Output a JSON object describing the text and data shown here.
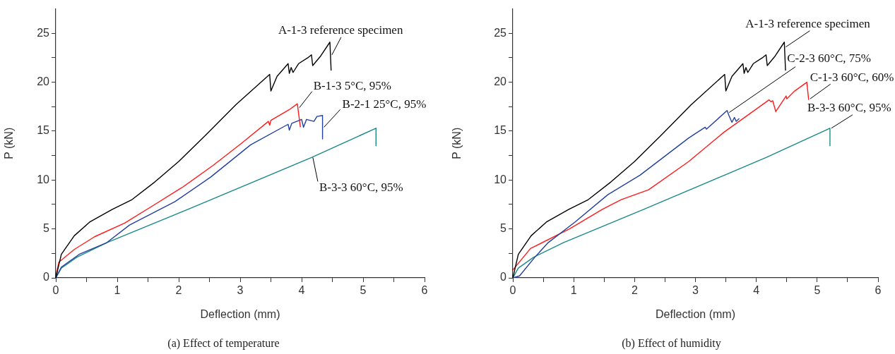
{
  "chart_data": [
    {
      "type": "line",
      "title": "(a)  Effect of temperature",
      "xlabel": "Deflection (mm)",
      "ylabel": "P (kN)",
      "xlim": [
        0,
        6
      ],
      "ylim": [
        0,
        27.5
      ],
      "xticks": [
        0,
        {
          "value": 0.5,
          "label": null
        },
        1,
        {
          "value": 1.5,
          "label": null
        },
        2,
        {
          "value": 2.5,
          "label": null
        },
        3,
        {
          "value": 3.5,
          "label": null
        },
        4,
        {
          "value": 4.5,
          "label": null
        },
        5,
        {
          "value": 5.5,
          "label": null
        },
        6
      ],
      "yticks": [
        0,
        {
          "value": 2.5,
          "label": null
        },
        5,
        {
          "value": 7.5,
          "label": null
        },
        10,
        {
          "value": 12.5,
          "label": null
        },
        15,
        {
          "value": 17.5,
          "label": null
        },
        20,
        {
          "value": 22.5,
          "label": null
        },
        25
      ],
      "grid": false,
      "legend": false,
      "annotations": [
        {
          "text": "A-1-3 reference specimen",
          "x": 4.47,
          "y": 22.8
        },
        {
          "text": "B-1-3 5°C, 95%",
          "x": 3.94,
          "y": 17.4
        },
        {
          "text": "B-2-1 25°C, 95%",
          "x": 4.34,
          "y": 15.4
        },
        {
          "text": "B-3-3 60°C, 95%",
          "x": 4.16,
          "y": 12.3
        }
      ],
      "series": [
        {
          "color": "#000000",
          "x": [
            0,
            0.09,
            0.3,
            0.55,
            0.92,
            1.24,
            1.61,
            2,
            2.44,
            2.93,
            3.48,
            3.5,
            3.6,
            3.78,
            3.8,
            3.83,
            3.86,
            3.95,
            4.1,
            4.16,
            4.18,
            4.3,
            4.46,
            4.48
          ],
          "values": [
            0,
            2.4,
            4.3,
            5.7,
            7.0,
            8.0,
            9.8,
            11.9,
            14.6,
            17.7,
            20.8,
            19.1,
            20.6,
            21.9,
            20.9,
            21.5,
            21.0,
            21.9,
            22.5,
            22.8,
            21.7,
            22.6,
            24.1,
            21.2
          ]
        },
        {
          "color": "#ff1a1a",
          "x": [
            0,
            0.05,
            0.3,
            0.63,
            1.12,
            1.61,
            2.07,
            2.56,
            3.01,
            3.46,
            3.48,
            3.5,
            3.8,
            3.93,
            3.98
          ],
          "values": [
            0.2,
            1.6,
            2.9,
            4.2,
            5.6,
            7.5,
            9.3,
            11.5,
            13.7,
            16.0,
            15.6,
            16.1,
            17.2,
            17.8,
            15.4
          ]
        },
        {
          "color": "#2140a0",
          "x": [
            0,
            0.09,
            0.38,
            0.83,
            1.2,
            1.94,
            2.52,
            3.17,
            3.78,
            3.8,
            3.84,
            4.0,
            4.03,
            4.08,
            4.2,
            4.25,
            4.34,
            4.34
          ],
          "values": [
            0,
            1.1,
            2.4,
            3.6,
            5.4,
            7.8,
            10.3,
            13.6,
            15.7,
            15.1,
            15.8,
            16.2,
            15.4,
            16.2,
            16.0,
            16.5,
            16.6,
            14.2
          ]
        },
        {
          "color": "#1a8a86",
          "x": [
            0,
            0.09,
            0.34,
            0.83,
            2.15,
            4.16,
            5.21,
            5.21
          ],
          "values": [
            0,
            1.0,
            2.1,
            3.6,
            7.0,
            12.3,
            15.3,
            13.5
          ]
        }
      ]
    },
    {
      "type": "line",
      "title": "(b)  Effect of humidity",
      "xlabel": "Deflection (mm)",
      "ylabel": "P (kN)",
      "xlim": [
        0,
        6
      ],
      "ylim": [
        0,
        27.5
      ],
      "xticks": [
        0,
        {
          "value": 0.5,
          "label": null
        },
        1,
        {
          "value": 1.5,
          "label": null
        },
        2,
        {
          "value": 2.5,
          "label": null
        },
        3,
        {
          "value": 3.5,
          "label": null
        },
        4,
        {
          "value": 4.5,
          "label": null
        },
        5,
        {
          "value": 5.5,
          "label": null
        },
        6
      ],
      "yticks": [
        0,
        {
          "value": 2.5,
          "label": null
        },
        5,
        {
          "value": 7.5,
          "label": null
        },
        10,
        {
          "value": 12.5,
          "label": null
        },
        15,
        {
          "value": 17.5,
          "label": null
        },
        20,
        {
          "value": 22.5,
          "label": null
        },
        25
      ],
      "grid": false,
      "legend": false,
      "annotations": [
        {
          "text": "A-1-3 reference specimen",
          "x": 4.46,
          "y": 23.6
        },
        {
          "text": "C-2-3 60°C, 75%",
          "x": 3.53,
          "y": 16.9
        },
        {
          "text": "C-1-3 60°C, 60%",
          "x": 4.86,
          "y": 18.3
        },
        {
          "text": "B-3-3 60°C, 95%",
          "x": 5.21,
          "y": 15.3
        }
      ],
      "series": [
        {
          "color": "#000000",
          "x": [
            0,
            0.09,
            0.3,
            0.55,
            0.92,
            1.24,
            1.61,
            2,
            2.44,
            2.93,
            3.48,
            3.5,
            3.6,
            3.78,
            3.8,
            3.83,
            3.86,
            3.95,
            4.1,
            4.16,
            4.18,
            4.3,
            4.46,
            4.48
          ],
          "values": [
            0,
            2.4,
            4.3,
            5.7,
            7.0,
            8.0,
            9.8,
            11.9,
            14.6,
            17.7,
            20.8,
            19.1,
            20.6,
            21.9,
            20.9,
            21.5,
            21.0,
            21.9,
            22.5,
            22.8,
            21.7,
            22.6,
            24.1,
            21.2
          ]
        },
        {
          "color": "#2140a0",
          "x": [
            0,
            0.11,
            0.36,
            0.58,
            1.02,
            1.56,
            2.09,
            2.89,
            3.16,
            3.18,
            3.52,
            3.55,
            3.6,
            3.64,
            3.67,
            3.72
          ],
          "values": [
            0,
            0.2,
            2.1,
            3.6,
            5.7,
            8.5,
            10.5,
            14.3,
            15.4,
            15.2,
            17.1,
            16.6,
            15.9,
            16.4,
            16.0,
            16.3
          ]
        },
        {
          "color": "#ff1a1a",
          "x": [
            0,
            0.29,
            0.93,
            1.47,
            1.78,
            2.23,
            2.89,
            3.47,
            4.21,
            4.24,
            4.27,
            4.32,
            4.49,
            4.5,
            4.63,
            4.83,
            4.86
          ],
          "values": [
            0.8,
            3.0,
            5.0,
            7.0,
            8.0,
            9.0,
            11.9,
            14.9,
            18.2,
            18.0,
            18.1,
            17.0,
            18.6,
            18.3,
            19.1,
            20.0,
            18.2
          ]
        },
        {
          "color": "#1a8a86",
          "x": [
            0,
            0.09,
            0.34,
            0.83,
            2.15,
            4.16,
            5.21,
            5.21
          ],
          "values": [
            0,
            1.0,
            2.1,
            3.6,
            7.0,
            12.3,
            15.3,
            13.5
          ]
        }
      ]
    }
  ]
}
